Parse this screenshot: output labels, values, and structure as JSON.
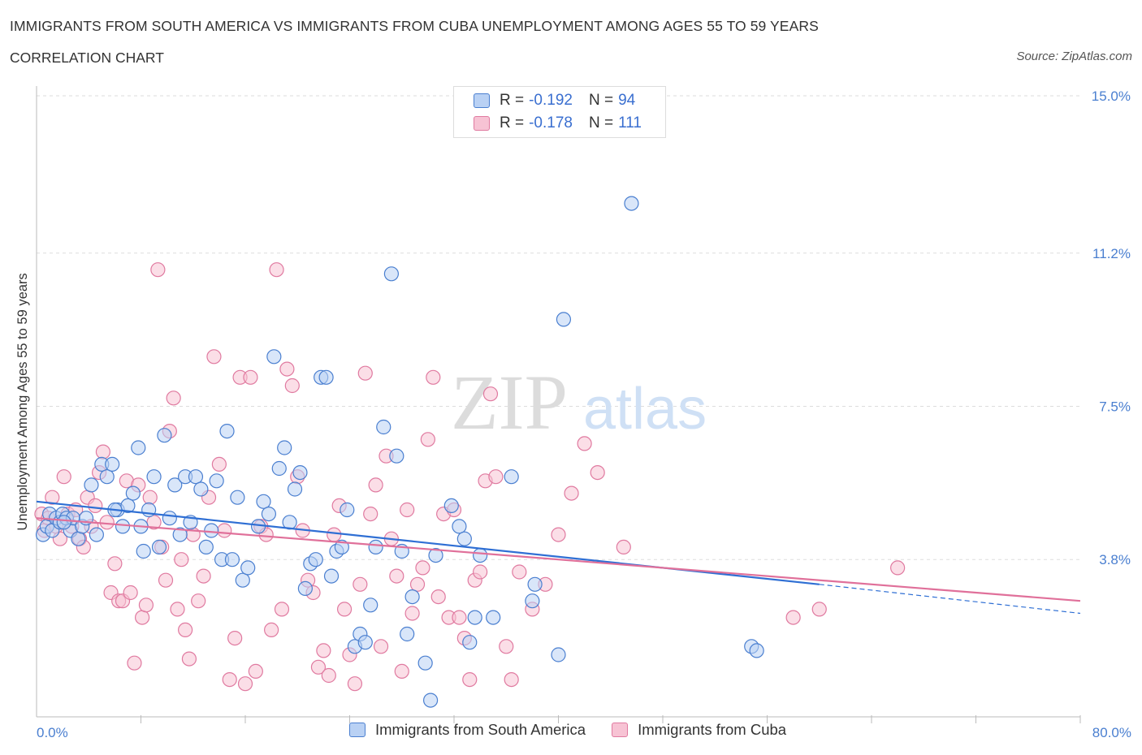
{
  "header": {
    "title": "IMMIGRANTS FROM SOUTH AMERICA VS IMMIGRANTS FROM CUBA UNEMPLOYMENT AMONG AGES 55 TO 59 YEARS",
    "subtitle": "CORRELATION CHART",
    "source": "Source: ZipAtlas.com"
  },
  "legend": {
    "rows": [
      {
        "r_label": "R =",
        "r_value": "-0.192",
        "n_label": "N =",
        "n_value": "94"
      },
      {
        "r_label": "R =",
        "r_value": "-0.178",
        "n_label": "N =",
        "n_value": "111"
      }
    ]
  },
  "bottom_legend": {
    "items": [
      "Immigrants from South America",
      "Immigrants from Cuba"
    ]
  },
  "colors": {
    "blue": "#4a7fd0",
    "blue_fill": "#b9d1f4",
    "blue_line": "#2f6fd4",
    "pink": "#e07aa0",
    "pink_fill": "#f7c3d4",
    "pink_line": "#e0709a"
  },
  "chart_data": {
    "type": "scatter",
    "title": "IMMIGRANTS FROM SOUTH AMERICA VS IMMIGRANTS FROM CUBA UNEMPLOYMENT AMONG AGES 55 TO 59 YEARS",
    "subtitle": "CORRELATION CHART",
    "xlabel": "",
    "ylabel": "Unemployment Among Ages 55 to 59 years",
    "xlim": [
      0,
      80
    ],
    "ylim": [
      0,
      15
    ],
    "x_tick_labels": [
      "0.0%",
      "80.0%"
    ],
    "y_tick_values": [
      3.8,
      7.5,
      11.2,
      15.0
    ],
    "y_tick_labels": [
      "3.8%",
      "7.5%",
      "11.2%",
      "15.0%"
    ],
    "grid": true,
    "legend_placement": "top-center",
    "watermark": "ZIPatlas",
    "series": [
      {
        "name": "Immigrants from South America",
        "R": -0.192,
        "N": 94,
        "trend": {
          "x": [
            0,
            60
          ],
          "y": [
            5.2,
            3.2
          ],
          "dashed_to": [
            80,
            2.5
          ]
        },
        "points": [
          [
            0.5,
            4.4
          ],
          [
            0.8,
            4.6
          ],
          [
            1.0,
            4.9
          ],
          [
            1.2,
            4.5
          ],
          [
            1.5,
            4.8
          ],
          [
            1.8,
            4.7
          ],
          [
            2.0,
            4.9
          ],
          [
            2.3,
            4.8
          ],
          [
            2.6,
            4.5
          ],
          [
            2.8,
            4.8
          ],
          [
            3.2,
            4.3
          ],
          [
            3.5,
            4.6
          ],
          [
            3.8,
            4.8
          ],
          [
            4.2,
            5.6
          ],
          [
            4.6,
            4.4
          ],
          [
            5.0,
            6.1
          ],
          [
            5.4,
            5.8
          ],
          [
            5.8,
            6.1
          ],
          [
            6.2,
            5.0
          ],
          [
            6.6,
            4.6
          ],
          [
            7.0,
            5.1
          ],
          [
            7.4,
            5.4
          ],
          [
            7.8,
            6.5
          ],
          [
            8.2,
            4.0
          ],
          [
            8.6,
            5.0
          ],
          [
            9.0,
            5.8
          ],
          [
            9.4,
            4.1
          ],
          [
            9.8,
            6.8
          ],
          [
            10.2,
            4.8
          ],
          [
            10.6,
            5.6
          ],
          [
            11.0,
            4.4
          ],
          [
            11.4,
            5.8
          ],
          [
            11.8,
            4.7
          ],
          [
            12.2,
            5.8
          ],
          [
            12.6,
            5.5
          ],
          [
            13.0,
            4.1
          ],
          [
            13.4,
            4.5
          ],
          [
            13.8,
            5.7
          ],
          [
            14.2,
            3.8
          ],
          [
            14.6,
            6.9
          ],
          [
            15.0,
            3.8
          ],
          [
            15.4,
            5.3
          ],
          [
            15.8,
            3.3
          ],
          [
            16.2,
            3.6
          ],
          [
            17.0,
            4.6
          ],
          [
            17.4,
            5.2
          ],
          [
            17.8,
            4.9
          ],
          [
            18.2,
            8.7
          ],
          [
            18.6,
            6.0
          ],
          [
            19.0,
            6.5
          ],
          [
            19.4,
            4.7
          ],
          [
            19.8,
            5.5
          ],
          [
            20.2,
            5.9
          ],
          [
            20.6,
            3.1
          ],
          [
            21.0,
            3.7
          ],
          [
            21.4,
            3.8
          ],
          [
            21.8,
            8.2
          ],
          [
            22.2,
            8.2
          ],
          [
            22.6,
            3.4
          ],
          [
            23.0,
            4.0
          ],
          [
            23.4,
            4.1
          ],
          [
            23.8,
            5.0
          ],
          [
            24.4,
            1.7
          ],
          [
            24.8,
            2.0
          ],
          [
            25.2,
            1.8
          ],
          [
            25.6,
            2.7
          ],
          [
            26.0,
            4.1
          ],
          [
            26.6,
            7.0
          ],
          [
            27.2,
            10.7
          ],
          [
            27.6,
            6.3
          ],
          [
            28.0,
            4.0
          ],
          [
            28.4,
            2.0
          ],
          [
            28.8,
            2.9
          ],
          [
            29.8,
            1.3
          ],
          [
            30.2,
            0.4
          ],
          [
            30.6,
            3.9
          ],
          [
            31.8,
            5.1
          ],
          [
            32.4,
            4.6
          ],
          [
            32.8,
            4.3
          ],
          [
            33.2,
            1.8
          ],
          [
            33.6,
            2.4
          ],
          [
            34.0,
            3.9
          ],
          [
            35.0,
            2.4
          ],
          [
            36.4,
            5.8
          ],
          [
            38.0,
            2.8
          ],
          [
            38.2,
            3.2
          ],
          [
            40.0,
            1.5
          ],
          [
            40.4,
            9.6
          ],
          [
            45.6,
            12.4
          ],
          [
            54.8,
            1.7
          ],
          [
            55.2,
            1.6
          ],
          [
            2.1,
            4.7
          ],
          [
            6.0,
            5.0
          ],
          [
            8.0,
            4.6
          ]
        ]
      },
      {
        "name": "Immigrants from Cuba",
        "R": -0.178,
        "N": 111,
        "trend": {
          "x": [
            0,
            80
          ],
          "y": [
            4.8,
            2.8
          ]
        },
        "points": [
          [
            0.4,
            4.9
          ],
          [
            0.6,
            4.5
          ],
          [
            0.9,
            4.8
          ],
          [
            1.2,
            5.3
          ],
          [
            1.5,
            4.6
          ],
          [
            1.8,
            4.3
          ],
          [
            2.1,
            5.8
          ],
          [
            2.4,
            4.9
          ],
          [
            2.7,
            4.6
          ],
          [
            3.0,
            5.0
          ],
          [
            3.3,
            4.3
          ],
          [
            3.6,
            4.1
          ],
          [
            3.9,
            5.3
          ],
          [
            4.2,
            4.6
          ],
          [
            4.5,
            5.1
          ],
          [
            4.8,
            5.9
          ],
          [
            5.1,
            6.4
          ],
          [
            5.4,
            4.7
          ],
          [
            5.7,
            3.0
          ],
          [
            6.0,
            3.7
          ],
          [
            6.3,
            2.8
          ],
          [
            6.6,
            2.8
          ],
          [
            6.9,
            5.7
          ],
          [
            7.2,
            3.0
          ],
          [
            7.5,
            1.3
          ],
          [
            7.8,
            5.6
          ],
          [
            8.1,
            2.4
          ],
          [
            8.4,
            2.7
          ],
          [
            8.7,
            5.3
          ],
          [
            9.0,
            4.7
          ],
          [
            9.3,
            10.8
          ],
          [
            9.6,
            4.1
          ],
          [
            9.9,
            3.3
          ],
          [
            10.2,
            6.9
          ],
          [
            10.5,
            7.7
          ],
          [
            10.8,
            2.6
          ],
          [
            11.1,
            3.8
          ],
          [
            11.4,
            2.1
          ],
          [
            11.7,
            1.4
          ],
          [
            12.0,
            4.4
          ],
          [
            12.4,
            2.8
          ],
          [
            12.8,
            3.4
          ],
          [
            13.2,
            5.3
          ],
          [
            13.6,
            8.7
          ],
          [
            14.0,
            6.1
          ],
          [
            14.4,
            4.5
          ],
          [
            14.8,
            0.9
          ],
          [
            15.2,
            1.9
          ],
          [
            15.6,
            8.2
          ],
          [
            16.0,
            0.8
          ],
          [
            16.4,
            8.2
          ],
          [
            16.8,
            1.1
          ],
          [
            17.2,
            4.6
          ],
          [
            17.6,
            4.4
          ],
          [
            18.0,
            2.1
          ],
          [
            18.4,
            10.8
          ],
          [
            18.8,
            2.6
          ],
          [
            19.2,
            8.4
          ],
          [
            19.6,
            8.0
          ],
          [
            20.0,
            5.8
          ],
          [
            20.4,
            4.5
          ],
          [
            20.8,
            3.3
          ],
          [
            21.2,
            3.0
          ],
          [
            21.6,
            1.2
          ],
          [
            22.0,
            1.6
          ],
          [
            22.4,
            1.0
          ],
          [
            22.8,
            4.4
          ],
          [
            23.2,
            5.1
          ],
          [
            23.6,
            2.6
          ],
          [
            24.0,
            1.5
          ],
          [
            24.4,
            0.8
          ],
          [
            24.8,
            3.2
          ],
          [
            25.2,
            8.3
          ],
          [
            25.6,
            4.9
          ],
          [
            26.0,
            5.6
          ],
          [
            26.4,
            1.7
          ],
          [
            26.8,
            6.3
          ],
          [
            27.2,
            4.3
          ],
          [
            27.6,
            3.4
          ],
          [
            28.0,
            1.1
          ],
          [
            28.4,
            5.0
          ],
          [
            28.8,
            2.5
          ],
          [
            29.2,
            3.2
          ],
          [
            29.6,
            3.6
          ],
          [
            30.0,
            6.7
          ],
          [
            30.4,
            8.2
          ],
          [
            30.8,
            2.9
          ],
          [
            31.2,
            4.9
          ],
          [
            31.6,
            2.4
          ],
          [
            32.0,
            5.0
          ],
          [
            32.4,
            2.4
          ],
          [
            32.8,
            1.9
          ],
          [
            33.2,
            0.9
          ],
          [
            33.6,
            3.3
          ],
          [
            34.0,
            3.5
          ],
          [
            34.4,
            5.7
          ],
          [
            34.8,
            7.8
          ],
          [
            35.2,
            5.8
          ],
          [
            36.0,
            1.7
          ],
          [
            36.4,
            0.9
          ],
          [
            37.0,
            3.5
          ],
          [
            38.0,
            2.6
          ],
          [
            39.0,
            3.2
          ],
          [
            40.0,
            4.4
          ],
          [
            41.0,
            5.4
          ],
          [
            42.0,
            6.6
          ],
          [
            43.0,
            5.9
          ],
          [
            45.0,
            4.1
          ],
          [
            58.0,
            2.4
          ],
          [
            60.0,
            2.6
          ],
          [
            66.0,
            3.6
          ]
        ]
      }
    ]
  }
}
